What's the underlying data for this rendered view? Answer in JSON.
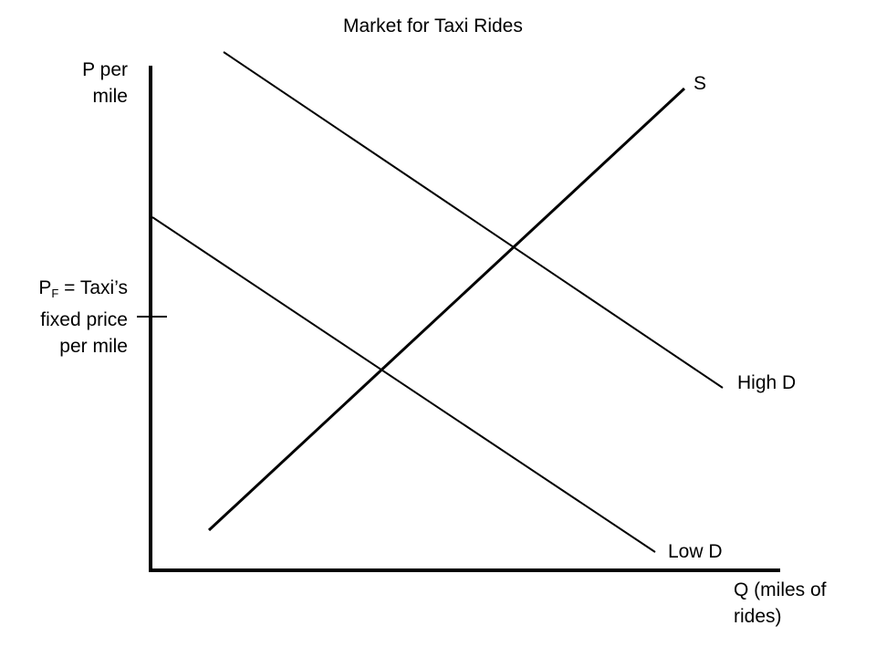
{
  "title": "Market for Taxi Rides",
  "y_axis_label": [
    "P per",
    "mile"
  ],
  "x_axis_label": [
    "Q (miles of",
    "rides)"
  ],
  "price_marker": {
    "symbol": "P",
    "subscript": "F",
    "line1_rest": " = Taxi’s",
    "line2": "fixed price",
    "line3": "per mile"
  },
  "curves": {
    "supply": "S",
    "high_demand": "High D",
    "low_demand": "Low D"
  },
  "colors": {
    "line": "#000000",
    "background": "#ffffff"
  }
}
